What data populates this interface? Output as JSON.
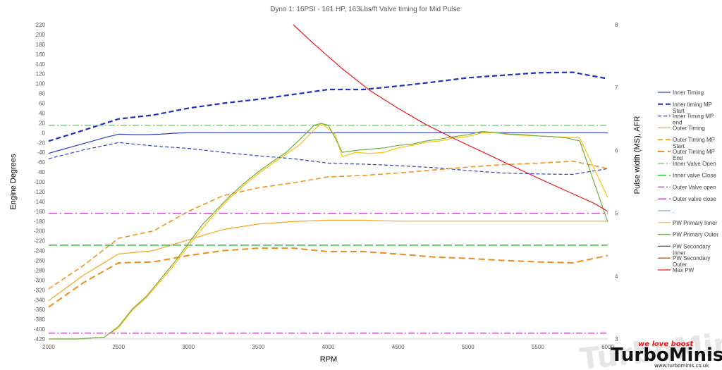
{
  "chart_data": {
    "type": "line",
    "title": "Dyno 1: 16PSI - 161 HP, 163Lbs/ft Valve timing for Mid Pulse",
    "xlabel": "RPM",
    "ylabel": "Engine Degrees",
    "y2label": "Pulse width (MS), AFR",
    "xlim": [
      2000,
      6000
    ],
    "ylim": [
      -420,
      220
    ],
    "y2lim": [
      3,
      8
    ],
    "x_ticks": [
      "2000",
      "2500",
      "3000",
      "3500",
      "4000",
      "4500",
      "5000",
      "5500",
      "6000"
    ],
    "y_ticks": [
      "220",
      "200",
      "180",
      "160",
      "140",
      "120",
      "100",
      "80",
      "60",
      "40",
      "20",
      "0",
      "-20",
      "-40",
      "-60",
      "-80",
      "-100",
      "-120",
      "-140",
      "-160",
      "-180",
      "-200",
      "-220",
      "-240",
      "-260",
      "-280",
      "-300",
      "-320",
      "-340",
      "-360",
      "-380",
      "-400",
      "-420"
    ],
    "y2_ticks": [
      "8",
      "7",
      "6",
      "5",
      "4",
      "3"
    ],
    "grid": false,
    "legend_position": "right",
    "series": [
      {
        "name": "Inner Timing",
        "axis": "left",
        "color": "#2E3FC0",
        "dash": "",
        "width": 1.2,
        "x": [
          2000,
          2100,
          2200,
          2300,
          2400,
          2500,
          2600,
          2700,
          2800,
          2900,
          3000,
          3500,
          4000,
          4500,
          5000,
          5500,
          6000
        ],
        "y": [
          -42,
          -34,
          -26,
          -18,
          -10,
          -3,
          -4,
          -4,
          -3,
          -1,
          0,
          0,
          0,
          0,
          0,
          0,
          0
        ]
      },
      {
        "name": "Inner timing MP Start",
        "axis": "left",
        "color": "#1F2FBF",
        "dash": "7,4",
        "width": 2.2,
        "x": [
          2000,
          2250,
          2500,
          2750,
          3000,
          3250,
          3500,
          3750,
          4000,
          4250,
          4500,
          4750,
          5000,
          5250,
          5500,
          5750,
          6000
        ],
        "y": [
          -17,
          5,
          28,
          36,
          50,
          60,
          68,
          78,
          88,
          88,
          95,
          103,
          112,
          117,
          122,
          123,
          110
        ]
      },
      {
        "name": "Inner Timing MP end",
        "axis": "left",
        "color": "#2E3FC0",
        "dash": "5,3",
        "width": 1.2,
        "x": [
          2000,
          2250,
          2500,
          2750,
          3000,
          3250,
          3500,
          3750,
          4000,
          4250,
          4500,
          4750,
          5000,
          5250,
          5500,
          5750,
          6000
        ],
        "y": [
          -53,
          -35,
          -20,
          -27,
          -32,
          -40,
          -47,
          -53,
          -62,
          -64,
          -67,
          -71,
          -77,
          -82,
          -84,
          -85,
          -73
        ]
      },
      {
        "name": "Outer Timing",
        "axis": "left",
        "color": "#F5A623",
        "dash": "",
        "width": 1.2,
        "x": [
          2000,
          2250,
          2500,
          2750,
          3000,
          3250,
          3500,
          3750,
          4000,
          4250,
          4500,
          4750,
          5000,
          5250,
          5500,
          5750,
          6000
        ],
        "y": [
          -342,
          -290,
          -247,
          -240,
          -218,
          -197,
          -186,
          -181,
          -178,
          -178,
          -180,
          -180,
          -180,
          -180,
          -180,
          -180,
          -180
        ]
      },
      {
        "name": "Outer Timing MP Start",
        "axis": "left",
        "color": "#F5921B",
        "dash": "7,4",
        "width": 1.6,
        "x": [
          2000,
          2250,
          2500,
          2750,
          3000,
          3250,
          3500,
          3750,
          4000,
          4250,
          4500,
          4750,
          5000,
          5250,
          5500,
          5750,
          6000
        ],
        "y": [
          -318,
          -270,
          -215,
          -200,
          -160,
          -128,
          -112,
          -102,
          -90,
          -87,
          -82,
          -76,
          -70,
          -65,
          -62,
          -58,
          -73
        ]
      },
      {
        "name": "Outer Timing MP End",
        "axis": "left",
        "color": "#F08A1A",
        "dash": "9,5",
        "width": 2,
        "x": [
          2000,
          2250,
          2500,
          2750,
          3000,
          3250,
          3500,
          3750,
          4000,
          4250,
          4500,
          4750,
          5000,
          5250,
          5500,
          5750,
          6000
        ],
        "y": [
          -355,
          -305,
          -265,
          -263,
          -250,
          -240,
          -235,
          -235,
          -242,
          -242,
          -247,
          -253,
          -256,
          -260,
          -263,
          -265,
          -250
        ]
      },
      {
        "name": "Inner Valve Open",
        "axis": "left",
        "color": "#6DD66D",
        "dash": "9,3,2,3",
        "width": 1.5,
        "x": [
          2000,
          6000
        ],
        "y": [
          15,
          15
        ]
      },
      {
        "name": "Inner valve Close",
        "axis": "left",
        "color": "#22C322",
        "dash": "12,4",
        "width": 1.5,
        "x": [
          2000,
          6000
        ],
        "y": [
          -229,
          -229
        ]
      },
      {
        "name": "Outer Valve open",
        "axis": "left",
        "color": "#C050C0",
        "dash": "9,3,2,3",
        "width": 1.5,
        "x": [
          2000,
          6000
        ],
        "y": [
          -408,
          -408
        ]
      },
      {
        "name": "Outer valve close",
        "axis": "left",
        "color": "#C050C0",
        "dash": "12,4,2,4",
        "width": 1.5,
        "x": [
          2000,
          6000
        ],
        "y": [
          -164,
          -164
        ]
      },
      {
        "name": ".",
        "axis": "right",
        "color": "#7EA6C7",
        "dash": "",
        "width": 1.2,
        "x": [],
        "y": []
      },
      {
        "name": "PW Primary Inner",
        "axis": "right",
        "color": "#FFC000",
        "dash": "",
        "width": 1.2,
        "x": [
          2000,
          2200,
          2400,
          2500,
          2600,
          2700,
          2800,
          2900,
          3000,
          3100,
          3200,
          3300,
          3400,
          3500,
          3600,
          3700,
          3800,
          3900,
          3950,
          4000,
          4050,
          4100,
          4200,
          4300,
          4400,
          4500,
          4600,
          4700,
          4800,
          4900,
          5000,
          5100,
          5200,
          5300,
          5400,
          5500,
          5600,
          5700,
          5800,
          6000
        ],
        "y": [
          3,
          3,
          3.03,
          3.18,
          3.46,
          3.66,
          3.92,
          4.18,
          4.48,
          4.76,
          5.02,
          5.25,
          5.45,
          5.63,
          5.79,
          5.94,
          6.1,
          6.33,
          6.43,
          6.35,
          6.25,
          5.9,
          5.97,
          5.95,
          5.97,
          6.04,
          6.08,
          6.13,
          6.15,
          6.2,
          6.22,
          6.28,
          6.28,
          6.25,
          6.24,
          6.23,
          6.22,
          6.21,
          6.2,
          5.25
        ]
      },
      {
        "name": "PW Primary Outer",
        "axis": "right",
        "color": "#70AD47",
        "dash": "",
        "width": 1.2,
        "x": [
          2000,
          2200,
          2400,
          2500,
          2600,
          2700,
          2800,
          2900,
          3000,
          3100,
          3200,
          3300,
          3400,
          3500,
          3600,
          3700,
          3800,
          3900,
          3950,
          4000,
          4050,
          4100,
          4200,
          4300,
          4400,
          4500,
          4600,
          4700,
          4800,
          4900,
          5000,
          5100,
          5200,
          5300,
          5400,
          5500,
          5600,
          5700,
          5800,
          6000
        ],
        "y": [
          3,
          3,
          3.03,
          3.2,
          3.48,
          3.68,
          3.95,
          4.22,
          4.52,
          4.82,
          5.05,
          5.28,
          5.48,
          5.66,
          5.82,
          5.97,
          6.18,
          6.4,
          6.43,
          6.4,
          6.2,
          5.97,
          6,
          6.02,
          6.04,
          6.08,
          6.1,
          6.15,
          6.18,
          6.22,
          6.25,
          6.3,
          6.28,
          6.26,
          6.25,
          6.23,
          6.22,
          6.2,
          6.15,
          4.86
        ]
      },
      {
        "name": "PW Secondary Inner",
        "axis": "right",
        "color": "#255E91",
        "dash": "",
        "width": 1.2,
        "x": [],
        "y": []
      },
      {
        "name": "PW Secondary Outer",
        "axis": "right",
        "color": "#9E480E",
        "dash": "",
        "width": 1.2,
        "x": [],
        "y": []
      },
      {
        "name": "Max PW",
        "axis": "right",
        "color": "#E8191C",
        "dash": "",
        "width": 1.2,
        "x": [
          3750,
          3900,
          4100,
          4300,
          4500,
          4700,
          4900,
          5100,
          5300,
          5500,
          5700,
          5900,
          6000
        ],
        "y": [
          8,
          7.69,
          7.3,
          6.95,
          6.67,
          6.41,
          6.19,
          5.98,
          5.77,
          5.56,
          5.36,
          5.16,
          5.03
        ]
      }
    ]
  },
  "watermark": {
    "brand": "TurboMinis",
    "brand_part1": "Turbo",
    "brand_part2": "Minis",
    "tagline": "we love boost",
    "url": "www.turbominis.co.uk"
  }
}
